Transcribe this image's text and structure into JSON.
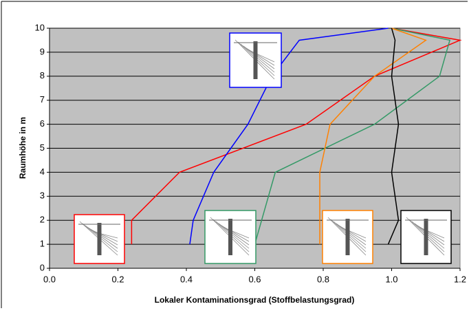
{
  "chart_data": {
    "type": "line",
    "xlabel": "Lokaler Kontaminationsgrad (Stoffbelastungsgrad)",
    "ylabel": "Raumhöhe in m",
    "xlim": [
      0,
      1.2
    ],
    "xticks": [
      {
        "value": 0,
        "label": "0.0"
      },
      0.2,
      0.4,
      0.6,
      0.8,
      {
        "value": 1,
        "label": "1.0"
      },
      1.2
    ],
    "ylim": [
      0,
      10
    ],
    "yticks": [
      0,
      1,
      2,
      3,
      4,
      5,
      6,
      7,
      8,
      9,
      10
    ],
    "grid": true,
    "background": "#c0c0c0",
    "series": [
      {
        "color": "#ff0000",
        "x": [
          0.24,
          0.24,
          0.38,
          0.75,
          0.95,
          1.2,
          1.0
        ],
        "values": [
          1,
          2,
          4,
          6,
          8,
          9.5,
          10
        ]
      },
      {
        "color": "#0000ff",
        "x": [
          0.41,
          0.42,
          0.48,
          0.58,
          0.65,
          0.73,
          0.99
        ],
        "values": [
          1,
          2,
          4,
          6,
          8,
          9.5,
          10
        ]
      },
      {
        "color": "#339966",
        "x": [
          0.6,
          0.62,
          0.66,
          0.95,
          1.14,
          1.17,
          1.0
        ],
        "values": [
          1,
          2,
          4,
          6,
          8,
          9.5,
          10
        ]
      },
      {
        "color": "#ff8000",
        "x": [
          0.79,
          0.79,
          0.79,
          0.82,
          0.95,
          1.1,
          1.0
        ],
        "values": [
          1,
          2,
          4,
          6,
          8,
          9.5,
          10
        ]
      },
      {
        "color": "#000000",
        "x": [
          0.99,
          1.02,
          1.0,
          1.02,
          1.0,
          1.01,
          1.0
        ],
        "values": [
          1,
          2,
          4,
          6,
          8,
          9.5,
          10
        ]
      }
    ]
  }
}
